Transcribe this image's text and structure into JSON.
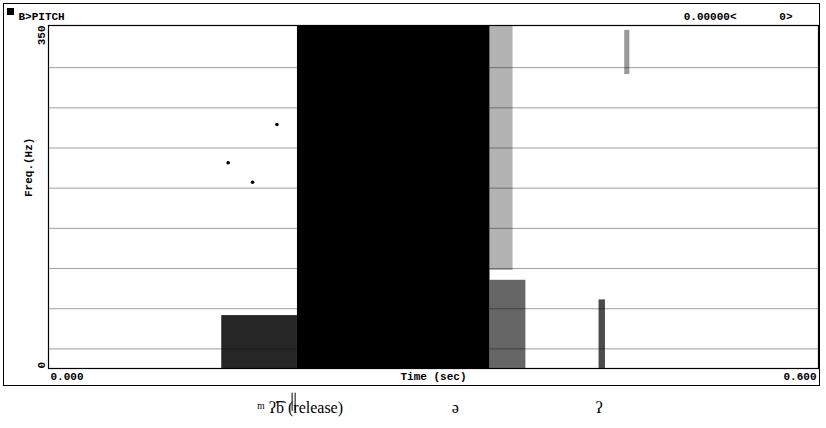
{
  "chart_data": {
    "type": "spectrogram",
    "title": "B>PITCH",
    "annotations": [
      "0.00000<",
      "0>"
    ],
    "xlabel": "Time (sec)",
    "ylabel": "Freq.(Hz)",
    "xlim": [
      0,
      0.6
    ],
    "xticks": [
      {
        "value": 0,
        "label": "0.000"
      },
      {
        "value": 0.6,
        "label": "0.600"
      }
    ],
    "ylim": [
      0,
      350
    ],
    "yticks": [
      0,
      350
    ],
    "grid": true,
    "grid_lines": [
      20,
      61,
      102,
      143,
      184,
      225,
      266,
      307
    ],
    "x": [
      0.14,
      0.159,
      0.178
    ],
    "values": [
      210,
      190,
      249
    ],
    "marker": "dot",
    "color": "#000000",
    "regions": [
      {
        "x1": 0.194,
        "x2": 0.344,
        "y1": 0,
        "y2": 350,
        "energy": 1.0
      },
      {
        "x1": 0.135,
        "x2": 0.194,
        "y1": 0,
        "y2": 54,
        "energy": 0.85
      },
      {
        "x1": 0.344,
        "x2": 0.372,
        "y1": 0,
        "y2": 90,
        "energy": 0.6
      },
      {
        "x1": 0.344,
        "x2": 0.362,
        "y1": 100,
        "y2": 350,
        "energy": 0.3
      },
      {
        "x1": 0.429,
        "x2": 0.434,
        "y1": 0,
        "y2": 70,
        "energy": 0.7
      },
      {
        "x1": 0.449,
        "x2": 0.453,
        "y1": 300,
        "y2": 345,
        "energy": 0.4
      }
    ],
    "segments": [
      {
        "label": "ᵐ ʔ͡b (release)",
        "x": 0.196
      },
      {
        "label": "ə",
        "x": 0.317
      },
      {
        "label": "ʔ",
        "x": 0.429
      }
    ],
    "release_time": 0.191
  }
}
